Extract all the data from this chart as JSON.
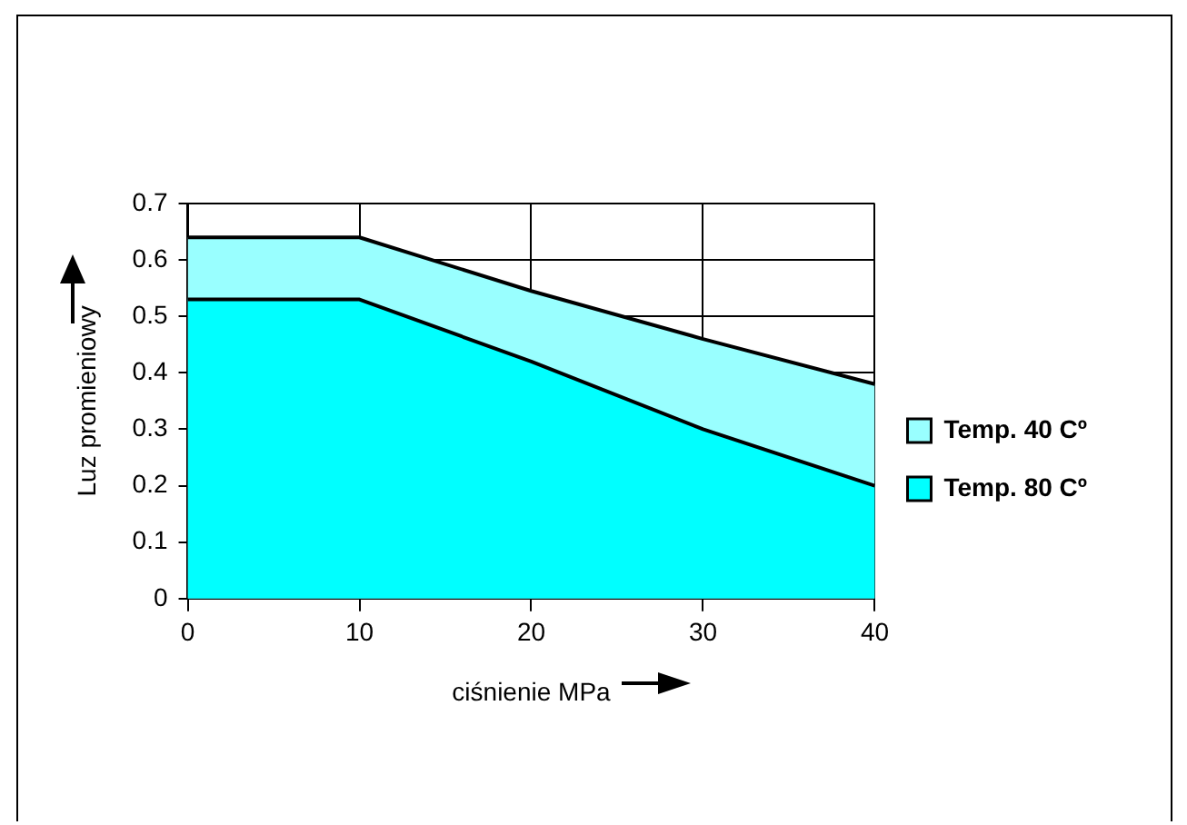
{
  "chart_data": {
    "type": "area",
    "xlabel": "ciśnienie MPa",
    "ylabel": "Luz promieniowy",
    "x": [
      0,
      10,
      20,
      30,
      40
    ],
    "series": [
      {
        "name": "Temp. 40 Cº",
        "color": "#99ffff",
        "values": [
          0.64,
          0.64,
          0.545,
          0.46,
          0.38
        ]
      },
      {
        "name": "Temp. 80 Cº",
        "color": "#00ffff",
        "values": [
          0.53,
          0.53,
          0.42,
          0.3,
          0.2
        ]
      }
    ],
    "xlim": [
      0,
      40
    ],
    "xticks": [
      0,
      10,
      20,
      30,
      40
    ],
    "ylim": [
      0,
      0.7
    ],
    "yticks": [
      0,
      0.1,
      0.2,
      0.3,
      0.4,
      0.5,
      0.6,
      0.7
    ],
    "grid": true,
    "legend": "right"
  }
}
